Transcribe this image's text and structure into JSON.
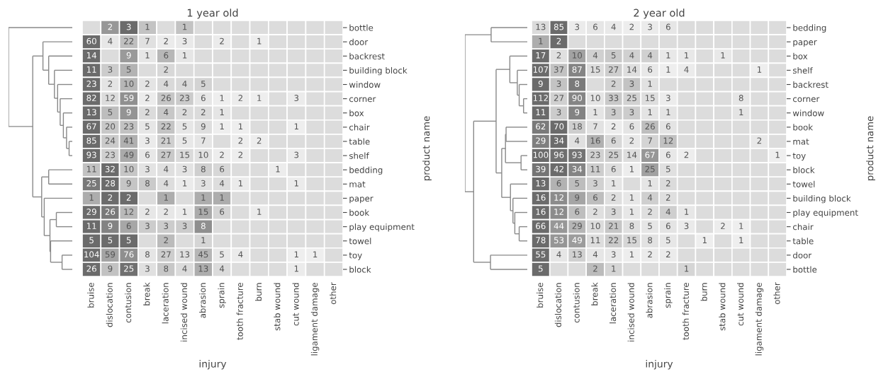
{
  "chart_data": [
    {
      "type": "heatmap",
      "title": "1 year old",
      "xlabel": "injury",
      "ylabel": "product name",
      "data_labels": true,
      "categories": [
        "bruise",
        "dislocation",
        "contusion",
        "break",
        "laceration",
        "incised wound",
        "abrasion",
        "sprain",
        "tooth fracture",
        "burn",
        "stab wound",
        "cut wound",
        "ligament damage",
        "other"
      ],
      "y_categories": [
        "bottle",
        "door",
        "backrest",
        "building block",
        "window",
        "corner",
        "box",
        "chair",
        "table",
        "shelf",
        "bedding",
        "mat",
        "paper",
        "book",
        "play equipment",
        "towel",
        "toy",
        "block"
      ],
      "cells": [
        [
          null,
          2,
          3,
          1,
          null,
          1,
          null,
          null,
          null,
          null,
          null,
          null,
          null,
          null
        ],
        [
          60,
          4,
          22,
          7,
          2,
          3,
          null,
          2,
          null,
          1,
          null,
          null,
          null,
          null
        ],
        [
          14,
          null,
          9,
          1,
          6,
          1,
          null,
          null,
          null,
          null,
          null,
          null,
          null,
          null
        ],
        [
          11,
          3,
          5,
          null,
          2,
          null,
          null,
          null,
          null,
          null,
          null,
          null,
          null,
          null
        ],
        [
          23,
          2,
          10,
          2,
          4,
          4,
          5,
          null,
          null,
          null,
          null,
          null,
          null,
          null
        ],
        [
          82,
          12,
          59,
          2,
          26,
          23,
          6,
          1,
          2,
          1,
          null,
          3,
          null,
          null
        ],
        [
          13,
          5,
          9,
          2,
          4,
          2,
          2,
          1,
          null,
          null,
          null,
          null,
          null,
          null
        ],
        [
          67,
          20,
          23,
          5,
          22,
          5,
          9,
          1,
          1,
          null,
          null,
          1,
          null,
          null
        ],
        [
          85,
          24,
          41,
          3,
          21,
          5,
          7,
          null,
          2,
          2,
          null,
          null,
          null,
          null
        ],
        [
          93,
          23,
          49,
          6,
          27,
          15,
          10,
          2,
          2,
          null,
          null,
          3,
          null,
          null
        ],
        [
          11,
          32,
          10,
          3,
          4,
          3,
          8,
          6,
          null,
          null,
          1,
          null,
          null,
          null
        ],
        [
          25,
          28,
          9,
          8,
          4,
          1,
          3,
          4,
          1,
          null,
          null,
          1,
          null,
          null
        ],
        [
          1,
          2,
          2,
          null,
          1,
          null,
          1,
          1,
          null,
          null,
          null,
          null,
          null,
          null
        ],
        [
          29,
          26,
          12,
          2,
          2,
          1,
          15,
          6,
          null,
          1,
          null,
          null,
          null,
          null
        ],
        [
          11,
          9,
          6,
          3,
          3,
          3,
          8,
          null,
          null,
          null,
          null,
          null,
          null,
          null
        ],
        [
          5,
          5,
          5,
          null,
          2,
          null,
          1,
          null,
          null,
          null,
          null,
          null,
          null,
          null
        ],
        [
          104,
          59,
          76,
          8,
          27,
          13,
          45,
          5,
          4,
          null,
          null,
          1,
          1,
          null
        ],
        [
          26,
          9,
          25,
          3,
          8,
          4,
          13,
          4,
          null,
          null,
          null,
          1,
          null,
          null
        ]
      ]
    },
    {
      "type": "heatmap",
      "title": "2 year old",
      "xlabel": "injury",
      "ylabel": "product name",
      "data_labels": true,
      "categories": [
        "bruise",
        "dislocation",
        "contusion",
        "break",
        "laceration",
        "incised wound",
        "abrasion",
        "sprain",
        "tooth fracture",
        "burn",
        "stab wound",
        "cut wound",
        "ligament damage",
        "other"
      ],
      "y_categories": [
        "bedding",
        "paper",
        "box",
        "shelf",
        "backrest",
        "corner",
        "window",
        "book",
        "mat",
        "toy",
        "block",
        "towel",
        "building block",
        "play equipment",
        "chair",
        "table",
        "door",
        "bottle"
      ],
      "cells": [
        [
          13,
          85,
          3,
          6,
          4,
          2,
          3,
          6,
          null,
          null,
          null,
          null,
          null,
          null
        ],
        [
          1,
          2,
          null,
          null,
          null,
          null,
          null,
          null,
          null,
          null,
          null,
          null,
          null,
          null
        ],
        [
          17,
          2,
          10,
          4,
          5,
          4,
          4,
          1,
          1,
          null,
          1,
          null,
          null,
          null
        ],
        [
          107,
          37,
          87,
          15,
          27,
          14,
          6,
          1,
          4,
          null,
          null,
          null,
          1,
          null
        ],
        [
          9,
          3,
          8,
          null,
          2,
          3,
          1,
          null,
          null,
          null,
          null,
          null,
          null,
          null
        ],
        [
          112,
          27,
          90,
          10,
          33,
          25,
          15,
          3,
          null,
          null,
          null,
          8,
          null,
          null
        ],
        [
          11,
          3,
          9,
          1,
          3,
          3,
          1,
          1,
          null,
          null,
          null,
          1,
          null,
          null
        ],
        [
          62,
          70,
          18,
          7,
          2,
          6,
          26,
          6,
          null,
          null,
          null,
          null,
          null,
          null
        ],
        [
          29,
          34,
          4,
          16,
          6,
          2,
          7,
          12,
          null,
          null,
          null,
          null,
          2,
          null
        ],
        [
          100,
          96,
          93,
          23,
          25,
          14,
          67,
          6,
          2,
          null,
          null,
          null,
          null,
          1
        ],
        [
          39,
          42,
          34,
          11,
          6,
          1,
          25,
          5,
          null,
          null,
          null,
          null,
          null,
          null
        ],
        [
          13,
          6,
          5,
          3,
          1,
          null,
          1,
          2,
          null,
          null,
          null,
          null,
          null,
          null
        ],
        [
          16,
          12,
          9,
          6,
          2,
          1,
          4,
          2,
          null,
          null,
          null,
          null,
          null,
          null
        ],
        [
          16,
          12,
          6,
          2,
          3,
          1,
          2,
          4,
          1,
          null,
          null,
          null,
          null,
          null
        ],
        [
          66,
          44,
          29,
          10,
          21,
          8,
          5,
          6,
          3,
          null,
          2,
          1,
          null,
          null
        ],
        [
          78,
          53,
          49,
          11,
          22,
          15,
          8,
          5,
          null,
          1,
          null,
          1,
          null,
          null
        ],
        [
          55,
          4,
          13,
          4,
          3,
          1,
          2,
          2,
          null,
          null,
          null,
          null,
          null,
          null
        ],
        [
          5,
          null,
          null,
          2,
          1,
          null,
          null,
          null,
          1,
          null,
          null,
          null,
          null,
          null
        ]
      ]
    }
  ]
}
